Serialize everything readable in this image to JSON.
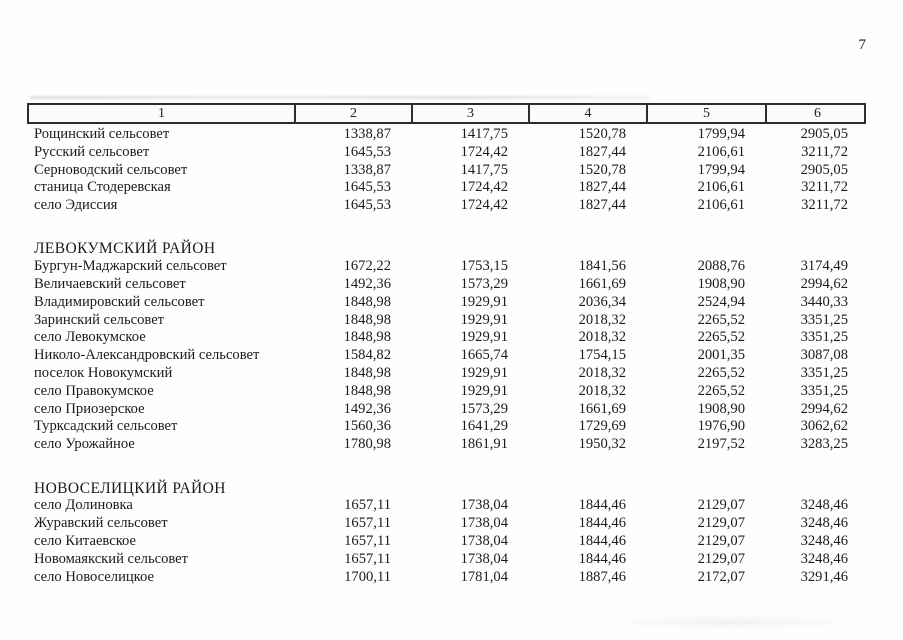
{
  "page": {
    "number": "7"
  },
  "table": {
    "headers": [
      "1",
      "2",
      "3",
      "4",
      "5",
      "6"
    ],
    "sections": [
      {
        "title": "",
        "rows": [
          {
            "name": "Рощинский сельсовет",
            "values": [
              "1338,87",
              "1417,75",
              "1520,78",
              "1799,94",
              "2905,05"
            ]
          },
          {
            "name": "Русский сельсовет",
            "values": [
              "1645,53",
              "1724,42",
              "1827,44",
              "2106,61",
              "3211,72"
            ]
          },
          {
            "name": "Серноводский сельсовет",
            "values": [
              "1338,87",
              "1417,75",
              "1520,78",
              "1799,94",
              "2905,05"
            ]
          },
          {
            "name": "станица Стодеревская",
            "values": [
              "1645,53",
              "1724,42",
              "1827,44",
              "2106,61",
              "3211,72"
            ]
          },
          {
            "name": "село Эдиссия",
            "values": [
              "1645,53",
              "1724,42",
              "1827,44",
              "2106,61",
              "3211,72"
            ]
          }
        ]
      },
      {
        "title": "ЛЕВОКУМСКИЙ РАЙОН",
        "rows": [
          {
            "name": "Бургун-Маджарский сельсовет",
            "values": [
              "1672,22",
              "1753,15",
              "1841,56",
              "2088,76",
              "3174,49"
            ]
          },
          {
            "name": "Величаевский сельсовет",
            "values": [
              "1492,36",
              "1573,29",
              "1661,69",
              "1908,90",
              "2994,62"
            ]
          },
          {
            "name": "Владимировский сельсовет",
            "values": [
              "1848,98",
              "1929,91",
              "2036,34",
              "2524,94",
              "3440,33"
            ]
          },
          {
            "name": "Заринский сельсовет",
            "values": [
              "1848,98",
              "1929,91",
              "2018,32",
              "2265,52",
              "3351,25"
            ]
          },
          {
            "name": "село Левокумское",
            "values": [
              "1848,98",
              "1929,91",
              "2018,32",
              "2265,52",
              "3351,25"
            ]
          },
          {
            "name": "Николо-Александровский сельсовет",
            "values": [
              "1584,82",
              "1665,74",
              "1754,15",
              "2001,35",
              "3087,08"
            ]
          },
          {
            "name": "поселок Новокумский",
            "values": [
              "1848,98",
              "1929,91",
              "2018,32",
              "2265,52",
              "3351,25"
            ]
          },
          {
            "name": "село Правокумское",
            "values": [
              "1848,98",
              "1929,91",
              "2018,32",
              "2265,52",
              "3351,25"
            ]
          },
          {
            "name": "село Приозерское",
            "values": [
              "1492,36",
              "1573,29",
              "1661,69",
              "1908,90",
              "2994,62"
            ]
          },
          {
            "name": "Турксадский сельсовет",
            "values": [
              "1560,36",
              "1641,29",
              "1729,69",
              "1976,90",
              "3062,62"
            ]
          },
          {
            "name": "село Урожайное",
            "values": [
              "1780,98",
              "1861,91",
              "1950,32",
              "2197,52",
              "3283,25"
            ]
          }
        ]
      },
      {
        "title": "НОВОСЕЛИЦКИЙ РАЙОН",
        "rows": [
          {
            "name": "село Долиновка",
            "values": [
              "1657,11",
              "1738,04",
              "1844,46",
              "2129,07",
              "3248,46"
            ]
          },
          {
            "name": "Журавский сельсовет",
            "values": [
              "1657,11",
              "1738,04",
              "1844,46",
              "2129,07",
              "3248,46"
            ]
          },
          {
            "name": "село Китаевское",
            "values": [
              "1657,11",
              "1738,04",
              "1844,46",
              "2129,07",
              "3248,46"
            ]
          },
          {
            "name": "Новомаякский сельсовет",
            "values": [
              "1657,11",
              "1738,04",
              "1844,46",
              "2129,07",
              "3248,46"
            ]
          },
          {
            "name": "село Новоселицкое",
            "values": [
              "1700,11",
              "1781,04",
              "1887,46",
              "2172,07",
              "3291,46"
            ]
          }
        ]
      }
    ]
  }
}
